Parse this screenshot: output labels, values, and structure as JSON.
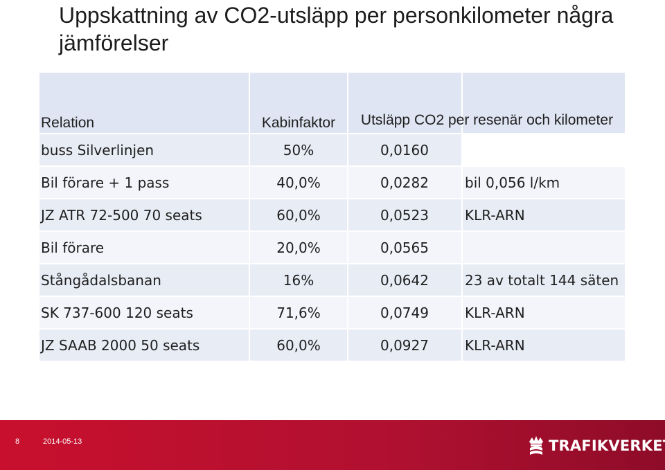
{
  "title": "Uppskattning av CO2-utsläpp per personkilometer några jämförelser",
  "table": {
    "headers": [
      "Relation",
      "Kabinfaktor",
      "Utsläpp CO2 per resenär och kilometer"
    ],
    "rows": [
      {
        "relation": "buss Silverlinjen",
        "kabinfaktor": "50%",
        "utslapp": "0,0160",
        "note": ""
      },
      {
        "relation": "Bil förare + 1 pass",
        "kabinfaktor": "40,0%",
        "utslapp": "0,0282",
        "note": "bil 0,056 l/km"
      },
      {
        "relation": "JZ ATR 72-500 70 seats",
        "kabinfaktor": "60,0%",
        "utslapp": "0,0523",
        "note": "KLR-ARN"
      },
      {
        "relation": "Bil förare",
        "kabinfaktor": "20,0%",
        "utslapp": "0,0565",
        "note": ""
      },
      {
        "relation": "Stångådalsbanan",
        "kabinfaktor": "16%",
        "utslapp": "0,0642",
        "note": "23 av totalt 144 säten"
      },
      {
        "relation": "SK 737-600 120 seats",
        "kabinfaktor": "71,6%",
        "utslapp": "0,0749",
        "note": "KLR-ARN"
      },
      {
        "relation": "JZ SAAB 2000 50 seats",
        "kabinfaktor": "60,0%",
        "utslapp": "0,0927",
        "note": "KLR-ARN"
      }
    ]
  },
  "footer": {
    "page_number": "8",
    "date": "2014-05-13",
    "logo_text": "TRAFIKVERKET",
    "logo_icon": "crown-icon"
  },
  "colors": {
    "footer_bg": "#c8102e",
    "table_header_bg": "#dfe5f2"
  }
}
